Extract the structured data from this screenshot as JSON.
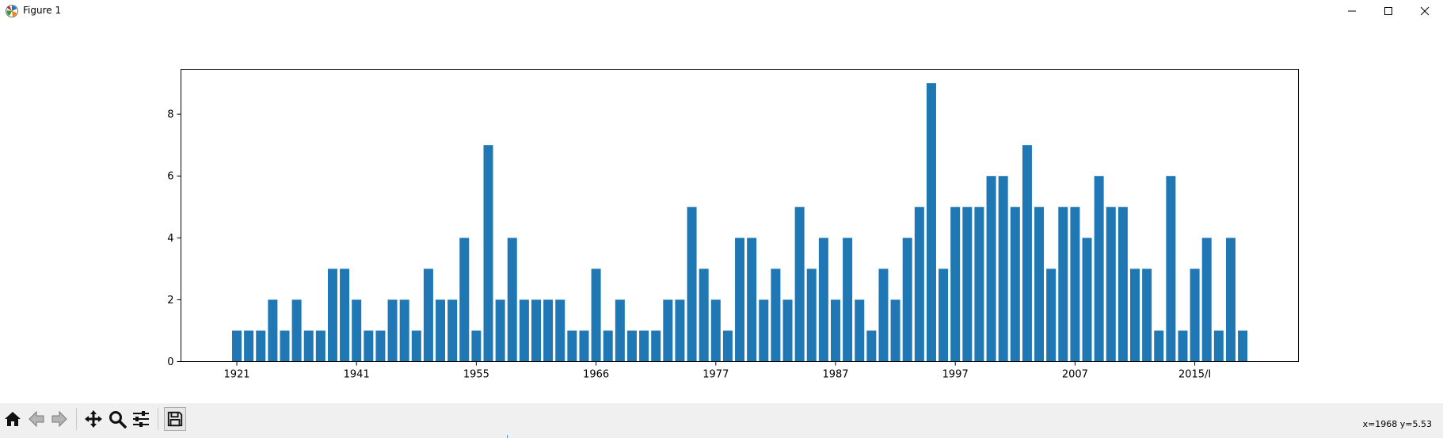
{
  "window": {
    "title": "Figure 1",
    "app_icon": "matplotlib-icon",
    "controls": [
      "minimize-icon",
      "maximize-icon",
      "close-icon"
    ]
  },
  "toolbar": {
    "buttons": [
      {
        "name": "home-button",
        "icon": "home-icon"
      },
      {
        "name": "back-button",
        "icon": "arrow-left-icon"
      },
      {
        "name": "forward-button",
        "icon": "arrow-right-icon"
      },
      {
        "name": "pan-button",
        "icon": "move-icon"
      },
      {
        "name": "zoom-button",
        "icon": "magnifier-icon"
      },
      {
        "name": "configure-subplots-button",
        "icon": "sliders-icon"
      },
      {
        "name": "save-button",
        "icon": "floppy-disk-icon"
      }
    ],
    "coords": "x=1968 y=5.53"
  },
  "chart_data": {
    "type": "bar",
    "title": "",
    "xlabel": "",
    "ylabel": "",
    "bar_color": "#1f77b4",
    "ylim": [
      0,
      9.45
    ],
    "yticks": [
      0,
      2,
      4,
      6,
      8
    ],
    "x_tick_labels": [
      "1921",
      "1941",
      "1955",
      "1966",
      "1977",
      "1987",
      "1997",
      "2007",
      "2015/I"
    ],
    "x_tick_positions": [
      0,
      10,
      20,
      30,
      40,
      50,
      60,
      70,
      80
    ],
    "values": [
      1,
      1,
      1,
      2,
      1,
      2,
      1,
      1,
      3,
      3,
      2,
      1,
      1,
      2,
      2,
      1,
      3,
      2,
      2,
      4,
      1,
      7,
      2,
      4,
      2,
      2,
      2,
      2,
      1,
      1,
      3,
      1,
      2,
      1,
      1,
      1,
      2,
      2,
      5,
      3,
      2,
      1,
      4,
      4,
      2,
      3,
      2,
      5,
      3,
      4,
      2,
      4,
      2,
      1,
      3,
      2,
      4,
      5,
      9,
      3,
      5,
      5,
      5,
      6,
      6,
      5,
      7,
      5,
      3,
      5,
      5,
      4,
      6,
      5,
      5,
      3,
      3,
      1,
      6,
      1,
      3,
      4,
      1,
      4,
      1
    ],
    "grid": false,
    "legend": "none"
  }
}
